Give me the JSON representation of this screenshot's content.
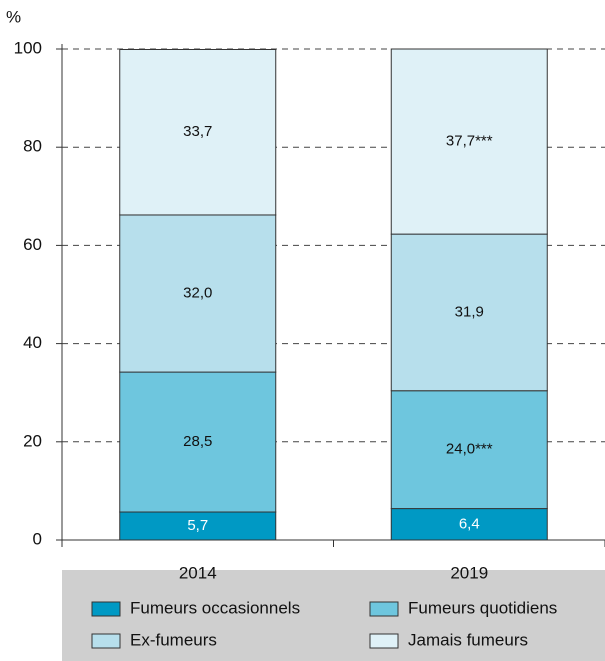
{
  "chart_data": {
    "type": "stacked_bar",
    "y_label": "%",
    "categories": [
      "2014",
      "2019"
    ],
    "series": [
      {
        "name": "Fumeurs occasionnels",
        "color": "#0099c4",
        "values": [
          5.7,
          6.4
        ],
        "value_labels": [
          "5,7",
          "6,4"
        ]
      },
      {
        "name": "Fumeurs quotidiens",
        "color": "#6ec6de",
        "values": [
          28.5,
          24.0
        ],
        "value_labels": [
          "28,5",
          "24,0***"
        ]
      },
      {
        "name": "Ex-fumeurs",
        "color": "#b7dfec",
        "values": [
          32.0,
          31.9
        ],
        "value_labels": [
          "32,0",
          "31,9"
        ]
      },
      {
        "name": "Jamais fumeurs",
        "color": "#dff1f7",
        "values": [
          33.7,
          37.7
        ],
        "value_labels": [
          "33,7",
          "37,7***"
        ]
      }
    ],
    "ylim": [
      0,
      100
    ],
    "yticks": [
      0,
      20,
      40,
      60,
      80,
      100
    ],
    "grid": true
  }
}
